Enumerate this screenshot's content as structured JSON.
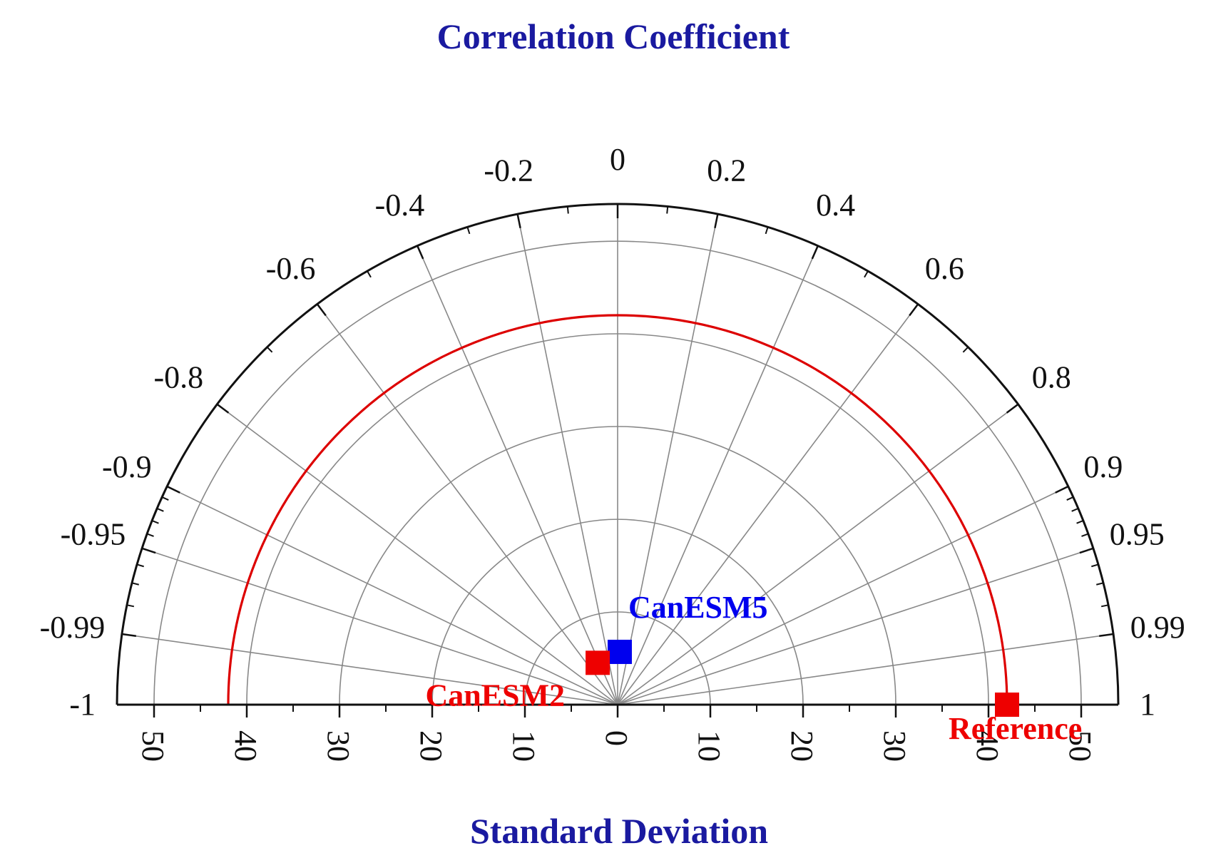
{
  "chart_data": {
    "type": "taylor-diagram",
    "title": "Correlation Coefficient",
    "xlabel": "Standard Deviation",
    "std_ticks": [
      50,
      40,
      30,
      20,
      10,
      0,
      10,
      20,
      30,
      40,
      50
    ],
    "std_range": [
      -54,
      54
    ],
    "correlation_ticks": [
      "-1",
      "-0.99",
      "-0.95",
      "-0.9",
      "-0.8",
      "-0.6",
      "-0.4",
      "-0.2",
      "0",
      "0.2",
      "0.4",
      "0.6",
      "0.8",
      "0.9",
      "0.95",
      "0.99",
      "1"
    ],
    "grid": true,
    "reference_std": 42,
    "points": [
      {
        "name": "CanESM5",
        "std": 5.7,
        "correlation": 0.04,
        "color": "#0000ee"
      },
      {
        "name": "CanESM2",
        "std": 5.0,
        "correlation": -0.43,
        "color": "#ee0000"
      },
      {
        "name": "Reference",
        "std": 42,
        "correlation": 1,
        "color": "#ee0000"
      }
    ],
    "colors": {
      "title": "#1a1aa0",
      "reference_arc": "#dd0000",
      "grid": "#888888"
    }
  }
}
